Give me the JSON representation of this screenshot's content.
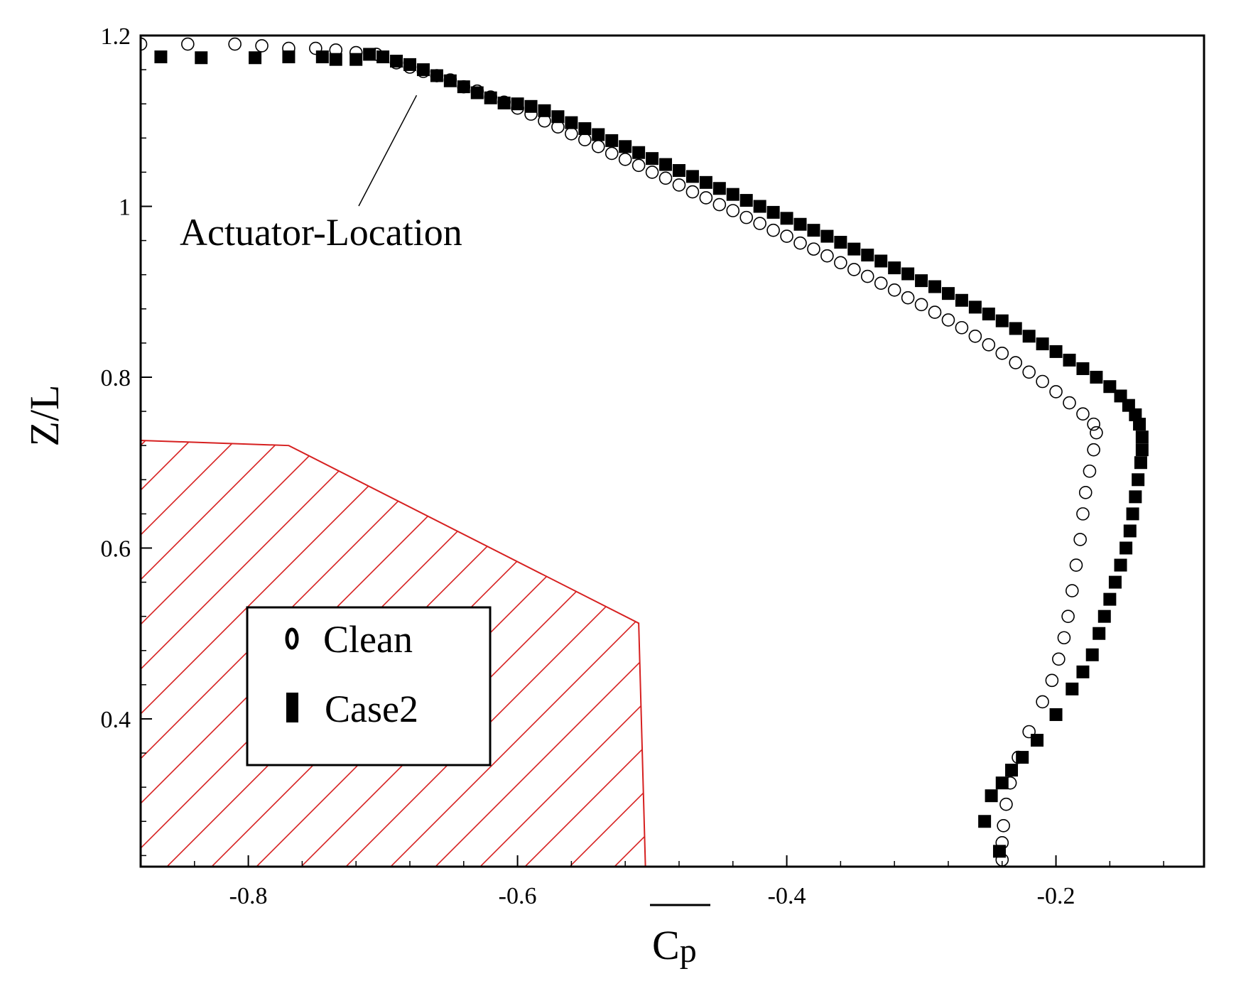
{
  "chart_data": {
    "type": "scatter",
    "xlabel": "Cp",
    "ylabel": "Z/L",
    "xlim": [
      -0.88,
      -0.09
    ],
    "ylim": [
      0.227,
      1.2
    ],
    "xticks": [
      -0.8,
      -0.6,
      -0.4,
      -0.2
    ],
    "yticks": [
      0.4,
      0.6,
      0.8,
      1.0,
      1.2
    ],
    "xtick_labels": [
      "-0.8",
      "-0.6",
      "-0.4",
      "-0.2"
    ],
    "ytick_labels": [
      "0.4",
      "0.6",
      "0.8",
      "1",
      "1.2"
    ],
    "grid": false,
    "legend_position": "lower-left",
    "annotation": {
      "text": "Actuator-Location",
      "points_to": [
        -0.675,
        1.13
      ]
    },
    "hatched_region": {
      "color": "#d62020",
      "vertices": [
        [
          -0.88,
          0.726
        ],
        [
          -0.77,
          0.72
        ],
        [
          -0.51,
          0.512
        ],
        [
          -0.505,
          0.227
        ],
        [
          -0.88,
          0.227
        ]
      ]
    },
    "series": [
      {
        "name": "Clean",
        "marker": "open-circle",
        "color": "#000000",
        "points": [
          [
            -0.88,
            1.19
          ],
          [
            -0.845,
            1.19
          ],
          [
            -0.81,
            1.19
          ],
          [
            -0.79,
            1.188
          ],
          [
            -0.77,
            1.185
          ],
          [
            -0.75,
            1.185
          ],
          [
            -0.735,
            1.183
          ],
          [
            -0.72,
            1.18
          ],
          [
            -0.705,
            1.178
          ],
          [
            -0.69,
            1.168
          ],
          [
            -0.68,
            1.163
          ],
          [
            -0.67,
            1.158
          ],
          [
            -0.66,
            1.153
          ],
          [
            -0.65,
            1.148
          ],
          [
            -0.64,
            1.14
          ],
          [
            -0.63,
            1.135
          ],
          [
            -0.62,
            1.128
          ],
          [
            -0.61,
            1.122
          ],
          [
            -0.6,
            1.115
          ],
          [
            -0.59,
            1.108
          ],
          [
            -0.58,
            1.1
          ],
          [
            -0.57,
            1.093
          ],
          [
            -0.56,
            1.085
          ],
          [
            -0.55,
            1.078
          ],
          [
            -0.54,
            1.07
          ],
          [
            -0.53,
            1.062
          ],
          [
            -0.52,
            1.055
          ],
          [
            -0.51,
            1.048
          ],
          [
            -0.5,
            1.04
          ],
          [
            -0.49,
            1.033
          ],
          [
            -0.48,
            1.025
          ],
          [
            -0.47,
            1.017
          ],
          [
            -0.46,
            1.01
          ],
          [
            -0.45,
            1.002
          ],
          [
            -0.44,
            0.995
          ],
          [
            -0.43,
            0.987
          ],
          [
            -0.42,
            0.98
          ],
          [
            -0.41,
            0.972
          ],
          [
            -0.4,
            0.965
          ],
          [
            -0.39,
            0.957
          ],
          [
            -0.38,
            0.95
          ],
          [
            -0.37,
            0.942
          ],
          [
            -0.36,
            0.934
          ],
          [
            -0.35,
            0.926
          ],
          [
            -0.34,
            0.918
          ],
          [
            -0.33,
            0.91
          ],
          [
            -0.32,
            0.902
          ],
          [
            -0.31,
            0.893
          ],
          [
            -0.3,
            0.885
          ],
          [
            -0.29,
            0.876
          ],
          [
            -0.28,
            0.867
          ],
          [
            -0.27,
            0.858
          ],
          [
            -0.26,
            0.848
          ],
          [
            -0.25,
            0.838
          ],
          [
            -0.24,
            0.828
          ],
          [
            -0.23,
            0.817
          ],
          [
            -0.22,
            0.806
          ],
          [
            -0.21,
            0.795
          ],
          [
            -0.2,
            0.783
          ],
          [
            -0.19,
            0.77
          ],
          [
            -0.18,
            0.757
          ],
          [
            -0.172,
            0.745
          ],
          [
            -0.17,
            0.735
          ],
          [
            -0.172,
            0.715
          ],
          [
            -0.175,
            0.69
          ],
          [
            -0.178,
            0.665
          ],
          [
            -0.18,
            0.64
          ],
          [
            -0.182,
            0.61
          ],
          [
            -0.185,
            0.58
          ],
          [
            -0.188,
            0.55
          ],
          [
            -0.191,
            0.52
          ],
          [
            -0.194,
            0.495
          ],
          [
            -0.198,
            0.47
          ],
          [
            -0.203,
            0.445
          ],
          [
            -0.21,
            0.42
          ],
          [
            -0.22,
            0.385
          ],
          [
            -0.228,
            0.355
          ],
          [
            -0.234,
            0.325
          ],
          [
            -0.237,
            0.3
          ],
          [
            -0.239,
            0.275
          ],
          [
            -0.24,
            0.255
          ],
          [
            -0.24,
            0.235
          ]
        ]
      },
      {
        "name": "Case2",
        "marker": "filled-square",
        "color": "#000000",
        "points": [
          [
            -0.865,
            1.175
          ],
          [
            -0.835,
            1.174
          ],
          [
            -0.795,
            1.174
          ],
          [
            -0.77,
            1.175
          ],
          [
            -0.745,
            1.175
          ],
          [
            -0.735,
            1.172
          ],
          [
            -0.72,
            1.172
          ],
          [
            -0.71,
            1.178
          ],
          [
            -0.7,
            1.175
          ],
          [
            -0.69,
            1.17
          ],
          [
            -0.68,
            1.166
          ],
          [
            -0.67,
            1.16
          ],
          [
            -0.66,
            1.153
          ],
          [
            -0.65,
            1.147
          ],
          [
            -0.64,
            1.14
          ],
          [
            -0.63,
            1.133
          ],
          [
            -0.62,
            1.127
          ],
          [
            -0.61,
            1.121
          ],
          [
            -0.6,
            1.12
          ],
          [
            -0.59,
            1.117
          ],
          [
            -0.58,
            1.112
          ],
          [
            -0.57,
            1.105
          ],
          [
            -0.56,
            1.098
          ],
          [
            -0.55,
            1.091
          ],
          [
            -0.54,
            1.084
          ],
          [
            -0.53,
            1.077
          ],
          [
            -0.52,
            1.07
          ],
          [
            -0.51,
            1.063
          ],
          [
            -0.5,
            1.056
          ],
          [
            -0.49,
            1.049
          ],
          [
            -0.48,
            1.042
          ],
          [
            -0.47,
            1.035
          ],
          [
            -0.46,
            1.028
          ],
          [
            -0.45,
            1.021
          ],
          [
            -0.44,
            1.014
          ],
          [
            -0.43,
            1.007
          ],
          [
            -0.42,
            1.0
          ],
          [
            -0.41,
            0.993
          ],
          [
            -0.4,
            0.986
          ],
          [
            -0.39,
            0.979
          ],
          [
            -0.38,
            0.972
          ],
          [
            -0.37,
            0.965
          ],
          [
            -0.36,
            0.958
          ],
          [
            -0.35,
            0.95
          ],
          [
            -0.34,
            0.943
          ],
          [
            -0.33,
            0.936
          ],
          [
            -0.32,
            0.928
          ],
          [
            -0.31,
            0.921
          ],
          [
            -0.3,
            0.913
          ],
          [
            -0.29,
            0.906
          ],
          [
            -0.28,
            0.898
          ],
          [
            -0.27,
            0.89
          ],
          [
            -0.26,
            0.882
          ],
          [
            -0.25,
            0.874
          ],
          [
            -0.24,
            0.866
          ],
          [
            -0.23,
            0.857
          ],
          [
            -0.22,
            0.848
          ],
          [
            -0.21,
            0.839
          ],
          [
            -0.2,
            0.83
          ],
          [
            -0.19,
            0.82
          ],
          [
            -0.18,
            0.81
          ],
          [
            -0.17,
            0.8
          ],
          [
            -0.16,
            0.789
          ],
          [
            -0.152,
            0.778
          ],
          [
            -0.146,
            0.767
          ],
          [
            -0.141,
            0.756
          ],
          [
            -0.138,
            0.745
          ],
          [
            -0.136,
            0.73
          ],
          [
            -0.136,
            0.715
          ],
          [
            -0.137,
            0.7
          ],
          [
            -0.139,
            0.68
          ],
          [
            -0.141,
            0.66
          ],
          [
            -0.143,
            0.64
          ],
          [
            -0.145,
            0.62
          ],
          [
            -0.148,
            0.6
          ],
          [
            -0.152,
            0.58
          ],
          [
            -0.156,
            0.56
          ],
          [
            -0.16,
            0.54
          ],
          [
            -0.164,
            0.52
          ],
          [
            -0.168,
            0.5
          ],
          [
            -0.173,
            0.475
          ],
          [
            -0.18,
            0.455
          ],
          [
            -0.188,
            0.435
          ],
          [
            -0.2,
            0.405
          ],
          [
            -0.214,
            0.375
          ],
          [
            -0.225,
            0.355
          ],
          [
            -0.233,
            0.34
          ],
          [
            -0.24,
            0.325
          ],
          [
            -0.248,
            0.31
          ],
          [
            -0.253,
            0.28
          ],
          [
            -0.242,
            0.245
          ]
        ]
      }
    ]
  }
}
